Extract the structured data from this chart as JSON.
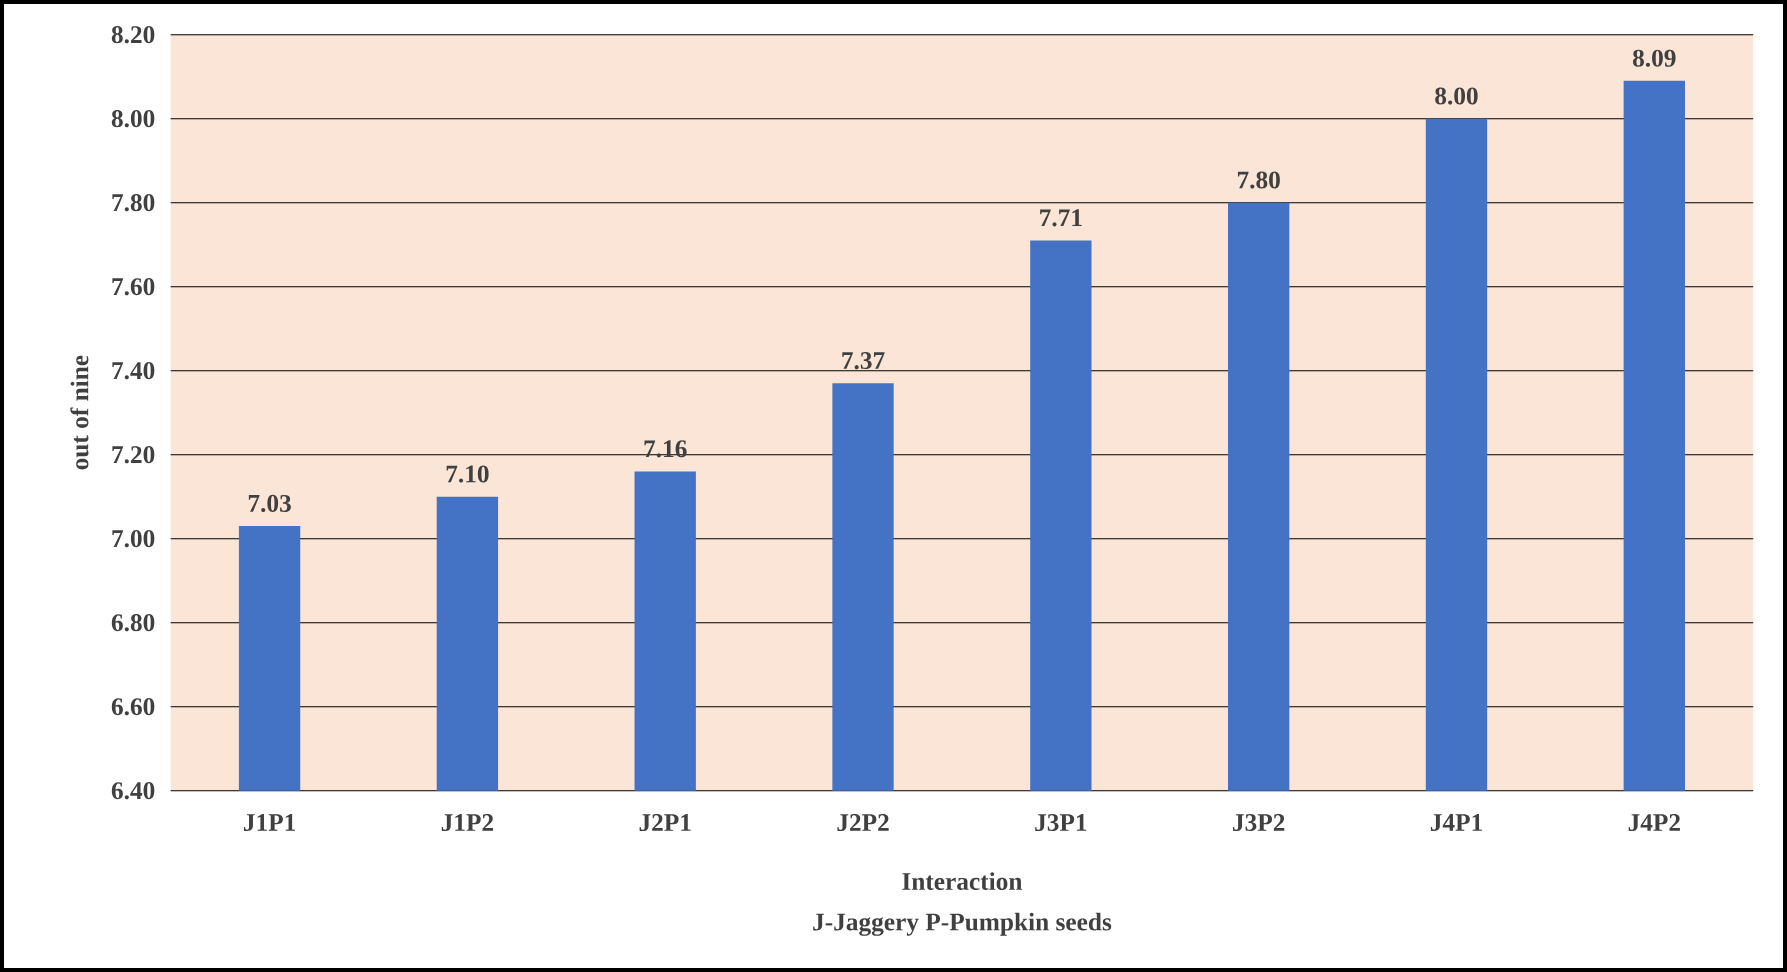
{
  "chart_data": {
    "type": "bar",
    "categories": [
      "J1P1",
      "J1P2",
      "J2P1",
      "J2P2",
      "J3P1",
      "J3P2",
      "J4P1",
      "J4P2"
    ],
    "values": [
      7.03,
      7.1,
      7.16,
      7.37,
      7.71,
      7.8,
      8.0,
      8.09
    ],
    "value_labels": [
      "7.03",
      "7.10",
      "7.16",
      "7.37",
      "7.71",
      "7.80",
      "8.00",
      "8.09"
    ],
    "color": "#4472c4",
    "ylim": [
      6.4,
      8.2
    ],
    "yticks": [
      {
        "value": 6.4,
        "label": "6.40"
      },
      {
        "value": 6.6,
        "label": "6.60"
      },
      {
        "value": 6.8,
        "label": "6.80"
      },
      {
        "value": 7.0,
        "label": "7.00"
      },
      {
        "value": 7.2,
        "label": "7.20"
      },
      {
        "value": 7.4,
        "label": "7.40"
      },
      {
        "value": 7.6,
        "label": "7.60"
      },
      {
        "value": 7.8,
        "label": "7.80"
      },
      {
        "value": 8.0,
        "label": "8.00"
      },
      {
        "value": 8.2,
        "label": "8.20"
      }
    ],
    "grid": "y",
    "ylabel": "out of nine",
    "xlabel": "Interaction",
    "annotations": [
      "J-Jaggery  P-Pumpkin seeds"
    ]
  }
}
